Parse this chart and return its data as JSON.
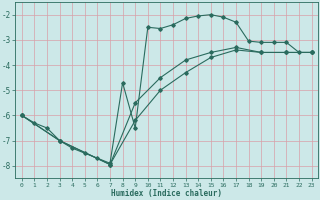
{
  "xlabel": "Humidex (Indice chaleur)",
  "xlim": [
    -0.5,
    23.5
  ],
  "ylim": [
    -8.5,
    -1.5
  ],
  "yticks": [
    -8,
    -7,
    -6,
    -5,
    -4,
    -3,
    -2
  ],
  "xticks": [
    0,
    1,
    2,
    3,
    4,
    5,
    6,
    7,
    8,
    9,
    10,
    11,
    12,
    13,
    14,
    15,
    16,
    17,
    18,
    19,
    20,
    21,
    22,
    23
  ],
  "line_color": "#2a6b5e",
  "bg_color": "#cce8e8",
  "grid_color": "#d8a0a8",
  "curve1_x": [
    0,
    1,
    2,
    3,
    4,
    5,
    6,
    7,
    8,
    9,
    10,
    11,
    12,
    13,
    14,
    15,
    16,
    17,
    18,
    19,
    20,
    21,
    22,
    23
  ],
  "curve1_y": [
    -6.0,
    -6.3,
    -6.5,
    -7.0,
    -7.3,
    -7.5,
    -7.7,
    -7.9,
    -4.7,
    -6.5,
    -2.5,
    -2.55,
    -2.4,
    -2.15,
    -2.05,
    -2.0,
    -2.1,
    -2.3,
    -3.05,
    -3.1,
    -3.1,
    -3.1,
    -3.5,
    -3.5
  ],
  "curve2_x": [
    0,
    3,
    7,
    9,
    11,
    13,
    15,
    17,
    19,
    21,
    23
  ],
  "curve2_y": [
    -6.0,
    -7.0,
    -7.95,
    -5.5,
    -4.5,
    -3.8,
    -3.5,
    -3.3,
    -3.5,
    -3.5,
    -3.5
  ],
  "curve3_x": [
    0,
    3,
    7,
    9,
    11,
    13,
    15,
    17,
    19,
    21,
    23
  ],
  "curve3_y": [
    -6.0,
    -7.0,
    -7.95,
    -6.2,
    -5.0,
    -4.3,
    -3.7,
    -3.4,
    -3.5,
    -3.5,
    -3.5
  ]
}
